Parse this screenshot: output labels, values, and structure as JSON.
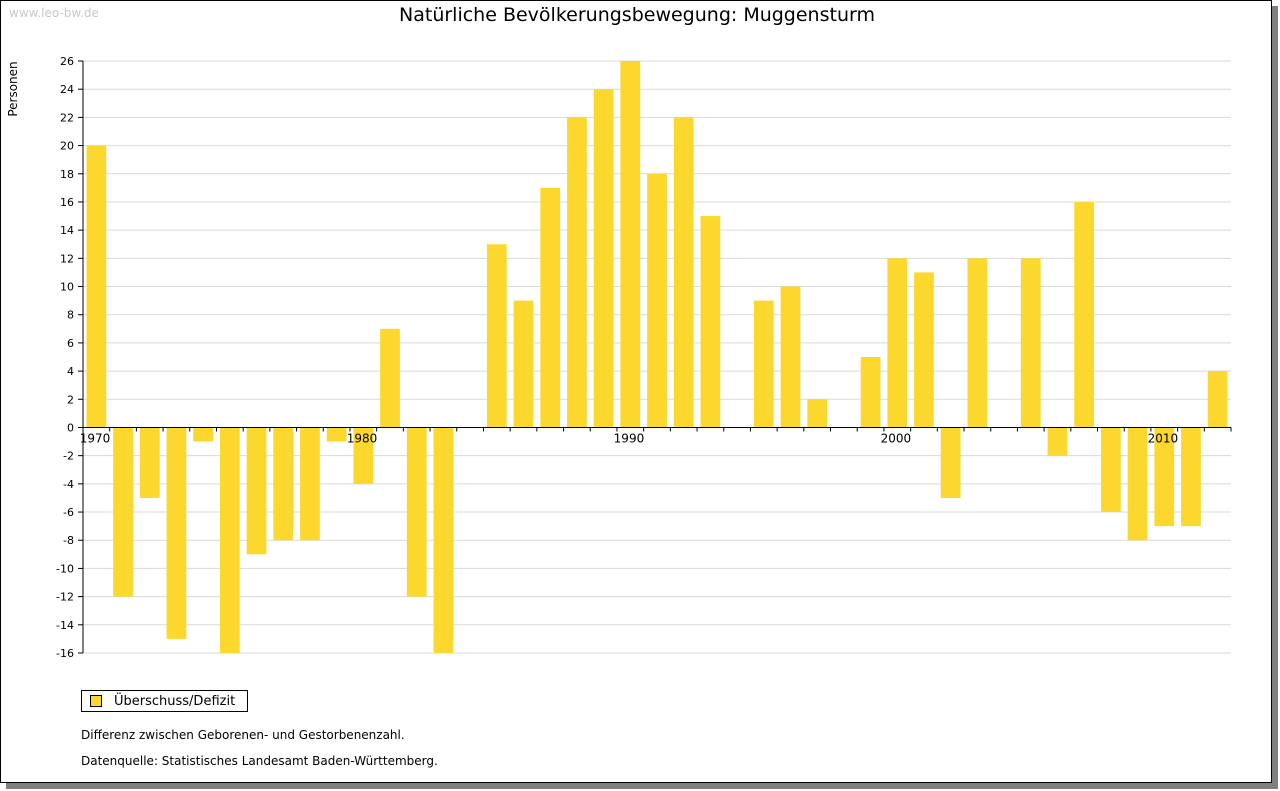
{
  "watermark": "www.leo-bw.de",
  "legend": {
    "label": "Überschuss/Defizit"
  },
  "notes": {
    "difference": "Differenz zwischen Geborenen- und Gestorbenenzahl.",
    "source": "Datenquelle: Statistisches Landesamt Baden-Württemberg."
  },
  "colors": {
    "bar": "#fcd82e",
    "grid": "#d9d9d9",
    "axis": "#000000"
  },
  "chart_data": {
    "type": "bar",
    "title": "Natürliche Bevölkerungsbewegung: Muggensturm",
    "ylabel": "Personen",
    "xlabel": "",
    "ylim": [
      -16,
      26
    ],
    "yticks": [
      26,
      24,
      22,
      20,
      18,
      16,
      14,
      12,
      10,
      8,
      6,
      4,
      2,
      0,
      -2,
      -4,
      -6,
      -8,
      -10,
      -12,
      -14,
      -16
    ],
    "x_tick_labels": [
      "1970",
      "1980",
      "1990",
      "2000",
      "2010"
    ],
    "grid": true,
    "legend_position": "bottom-left",
    "series": [
      {
        "name": "Überschuss/Defizit",
        "categories": [
          1970,
          1971,
          1972,
          1973,
          1974,
          1975,
          1976,
          1977,
          1978,
          1979,
          1980,
          1981,
          1982,
          1983,
          1984,
          1985,
          1986,
          1987,
          1988,
          1989,
          1990,
          1991,
          1992,
          1993,
          1994,
          1995,
          1996,
          1997,
          1998,
          1999,
          2000,
          2001,
          2002,
          2003,
          2004,
          2005,
          2006,
          2007,
          2008,
          2009,
          2010,
          2011,
          2012
        ],
        "values": [
          20,
          -12,
          -5,
          -15,
          -1,
          -16,
          -9,
          -8,
          -8,
          -1,
          -4,
          7,
          -12,
          -16,
          0,
          13,
          9,
          17,
          22,
          24,
          26,
          18,
          22,
          15,
          0,
          9,
          10,
          2,
          0,
          5,
          12,
          11,
          -5,
          12,
          0,
          12,
          -2,
          16,
          -6,
          -8,
          -7,
          -7,
          4
        ]
      }
    ]
  }
}
